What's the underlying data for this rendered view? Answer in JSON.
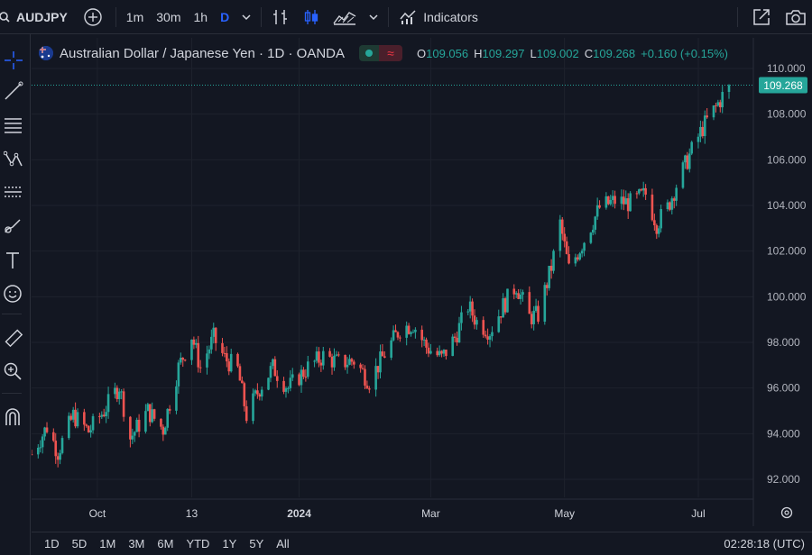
{
  "toolbar": {
    "symbol": "AUDJPY",
    "intervals": [
      "1m",
      "30m",
      "1h",
      "D"
    ],
    "active_interval": "D",
    "indicators_label": "Indicators"
  },
  "legend": {
    "title": "Australian Dollar / Japanese Yen · 1D · OANDA",
    "open_label": "O",
    "open": "109.056",
    "high_label": "H",
    "high": "109.297",
    "low_label": "L",
    "low": "109.002",
    "close_label": "C",
    "close": "109.268",
    "change": "+0.160 (+0.15%)",
    "status_symbol": "≈"
  },
  "left_tools": [
    "crosshair-icon",
    "trendline-icon",
    "fib-icon",
    "pattern-icon",
    "projection-icon",
    "brush-icon",
    "text-icon",
    "emoji-icon",
    "ruler-icon",
    "zoom-icon",
    "magnet-icon"
  ],
  "bottom": {
    "ranges": [
      "1D",
      "5D",
      "1M",
      "3M",
      "6M",
      "YTD",
      "1Y",
      "5Y",
      "All"
    ],
    "clock": "02:28:18 (UTC)"
  },
  "colors": {
    "up": "#26a69a",
    "down": "#ef5350",
    "price_line": "#26a69a",
    "background": "#131722",
    "grid": "#1e222d"
  },
  "chart_data": {
    "type": "candlestick",
    "symbol": "AUDJPY",
    "y_axis_ticks": [
      "92.000",
      "94.000",
      "96.000",
      "98.000",
      "100.000",
      "102.000",
      "104.000",
      "106.000",
      "108.000",
      "110.000"
    ],
    "ylim": [
      91.6,
      110.5
    ],
    "x_axis_ticks": [
      "Oct",
      "13",
      "2024",
      "Mar",
      "May",
      "Jul"
    ],
    "current_price": "109.268",
    "close_path": [
      [
        "2023-09-01",
        93.1
      ],
      [
        "2023-09-08",
        94.3
      ],
      [
        "2023-09-13",
        93.2
      ],
      [
        "2023-09-20",
        94.8
      ],
      [
        "2023-09-27",
        94.1
      ],
      [
        "2023-10-04",
        95.0
      ],
      [
        "2023-10-11",
        96.1
      ],
      [
        "2023-10-16",
        93.8
      ],
      [
        "2023-10-24",
        95.0
      ],
      [
        "2023-10-31",
        94.2
      ],
      [
        "2023-11-07",
        96.9
      ],
      [
        "2023-11-13",
        98.3
      ],
      [
        "2023-11-17",
        96.9
      ],
      [
        "2023-11-23",
        98.2
      ],
      [
        "2023-11-28",
        97.3
      ],
      [
        "2023-12-04",
        96.8
      ],
      [
        "2023-12-08",
        94.8
      ],
      [
        "2023-12-14",
        96.0
      ],
      [
        "2023-12-20",
        96.9
      ],
      [
        "2023-12-27",
        96.0
      ],
      [
        "2024-01-05",
        96.9
      ],
      [
        "2024-01-12",
        97.4
      ],
      [
        "2024-01-19",
        97.1
      ],
      [
        "2024-01-26",
        97.2
      ],
      [
        "2024-02-02",
        96.3
      ],
      [
        "2024-02-09",
        97.5
      ],
      [
        "2024-02-16",
        98.6
      ],
      [
        "2024-02-22",
        98.8
      ],
      [
        "2024-02-28",
        97.8
      ],
      [
        "2024-03-06",
        97.3
      ],
      [
        "2024-03-12",
        98.2
      ],
      [
        "2024-03-18",
        99.6
      ],
      [
        "2024-03-22",
        98.9
      ],
      [
        "2024-03-28",
        98.5
      ],
      [
        "2024-04-03",
        99.6
      ],
      [
        "2024-04-09",
        100.5
      ],
      [
        "2024-04-15",
        99.1
      ],
      [
        "2024-04-19",
        99.2
      ],
      [
        "2024-04-25",
        101.3
      ],
      [
        "2024-04-29",
        103.2
      ],
      [
        "2024-05-03",
        101.2
      ],
      [
        "2024-05-10",
        102.5
      ],
      [
        "2024-05-17",
        103.9
      ],
      [
        "2024-05-24",
        104.2
      ],
      [
        "2024-05-31",
        104.1
      ],
      [
        "2024-06-07",
        104.5
      ],
      [
        "2024-06-12",
        103.2
      ],
      [
        "2024-06-17",
        103.9
      ],
      [
        "2024-06-21",
        104.9
      ],
      [
        "2024-06-27",
        106.2
      ],
      [
        "2024-07-03",
        107.4
      ],
      [
        "2024-07-09",
        108.3
      ],
      [
        "2024-07-15",
        109.27
      ]
    ]
  }
}
